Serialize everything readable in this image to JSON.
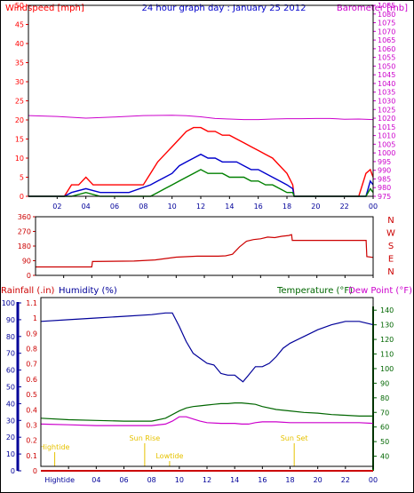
{
  "colors": {
    "wind": "#ff0000",
    "wind_avg": "#0000cc",
    "wind_low": "#008000",
    "barometer": "#cc00cc",
    "direction": "#cc0000",
    "rain": "#cc0000",
    "humidity": "#000099",
    "temperature": "#006600",
    "dewpoint": "#cc00cc",
    "events": "#e6c200",
    "grid": "#000000"
  },
  "chart_data": [
    {
      "type": "line",
      "title": "24 hour graph day : January 25 2012",
      "ylabel_left": "Windspeed [mph]",
      "ylabel_right": "Barometer [mb]",
      "x_ticks": [
        "02",
        "04",
        "06",
        "08",
        "10",
        "12",
        "14",
        "16",
        "18",
        "20",
        "22",
        "00"
      ],
      "y_left": {
        "min": 0,
        "max": 50,
        "ticks": [
          "0",
          "5",
          "10",
          "15",
          "20",
          "25",
          "30",
          "35",
          "40",
          "45",
          "50"
        ]
      },
      "y_right": {
        "min": 975,
        "max": 1085,
        "ticks": [
          "975",
          "980",
          "985",
          "990",
          "995",
          "1000",
          "1005",
          "1010",
          "1015",
          "1020",
          "1025",
          "1030",
          "1035",
          "1040",
          "1045",
          "1050",
          "1055",
          "1060",
          "1065",
          "1070",
          "1075",
          "1080",
          "1085"
        ]
      },
      "series": [
        {
          "key": "gust",
          "hours": [
            0,
            2.5,
            3.0,
            3.5,
            4.0,
            4.5,
            5.0,
            6.0,
            7.0,
            8.0,
            8.5,
            9.0,
            9.5,
            10.0,
            10.5,
            11.0,
            11.5,
            12.0,
            12.5,
            13.0,
            13.5,
            14.0,
            14.5,
            15.0,
            15.5,
            16.0,
            16.5,
            17.0,
            17.5,
            18.0,
            18.4,
            18.5,
            19.0,
            20.0,
            22.0,
            23.0,
            23.5,
            23.8,
            24.0
          ],
          "values": [
            0,
            0,
            3,
            3,
            5,
            3,
            3,
            3,
            3,
            3,
            6,
            9,
            11,
            13,
            15,
            17,
            18,
            18,
            17,
            17,
            16,
            16,
            15,
            14,
            13,
            12,
            11,
            10,
            8,
            6,
            3,
            0,
            0,
            0,
            0,
            0,
            6,
            7,
            5
          ]
        },
        {
          "key": "average",
          "hours": [
            0,
            2.5,
            3.0,
            4.0,
            5.0,
            7.0,
            8.5,
            9.0,
            9.5,
            10.0,
            10.5,
            11.0,
            11.5,
            12.0,
            12.5,
            13.0,
            13.5,
            14.0,
            14.5,
            15.0,
            15.5,
            16.0,
            16.5,
            17.0,
            17.5,
            18.0,
            18.4,
            18.5,
            23.5,
            23.8,
            24.0
          ],
          "values": [
            0,
            0,
            1,
            2,
            1,
            1,
            3,
            4,
            5,
            6,
            8,
            9,
            10,
            11,
            10,
            10,
            9,
            9,
            9,
            8,
            7,
            7,
            6,
            5,
            4,
            3,
            2,
            0,
            0,
            4,
            3
          ]
        },
        {
          "key": "low",
          "hours": [
            0,
            2.5,
            3.0,
            4.0,
            5.0,
            8.5,
            9.0,
            9.5,
            10.0,
            10.5,
            11.0,
            11.5,
            12.0,
            12.5,
            13.0,
            13.5,
            14.0,
            14.5,
            15.0,
            15.5,
            16.0,
            16.5,
            17.0,
            17.5,
            18.0,
            18.4,
            18.5,
            23.5,
            23.8,
            24.0
          ],
          "values": [
            0,
            0,
            0,
            1,
            0,
            0,
            1,
            2,
            3,
            4,
            5,
            6,
            7,
            6,
            6,
            6,
            5,
            5,
            5,
            4,
            4,
            3,
            3,
            2,
            1,
            1,
            0,
            0,
            2,
            1
          ]
        },
        {
          "key": "barometer",
          "axis": "right",
          "hours": [
            0,
            2,
            4,
            6,
            8,
            10,
            11,
            12,
            13,
            14,
            15,
            16,
            17,
            18,
            19,
            20,
            21,
            22,
            23,
            24
          ],
          "values": [
            1021.5,
            1021,
            1020,
            1020.7,
            1021.5,
            1021.7,
            1021.4,
            1020.8,
            1019.8,
            1019.5,
            1019.2,
            1019.2,
            1019.5,
            1019.7,
            1019.7,
            1019.8,
            1019.8,
            1019.4,
            1019.5,
            1019.2
          ]
        }
      ]
    },
    {
      "type": "line",
      "ylabel_right_letters": [
        "N",
        "W",
        "S",
        "E",
        "N"
      ],
      "x_ticks": [
        "02",
        "04",
        "06",
        "08",
        "10",
        "12",
        "14",
        "16",
        "18",
        "20",
        "22",
        "00"
      ],
      "y": {
        "min": 0,
        "max": 360,
        "ticks": [
          "0",
          "90",
          "180",
          "270",
          "360"
        ]
      },
      "series": [
        {
          "key": "direction",
          "hours": [
            0,
            4.0,
            4.05,
            7.0,
            8.5,
            10.0,
            11.5,
            12.5,
            13.0,
            13.5,
            14.0,
            14.5,
            15.0,
            15.5,
            16.0,
            16.5,
            17.0,
            17.5,
            18.0,
            18.2,
            18.25,
            23.5,
            23.55,
            24.0
          ],
          "values": [
            52,
            52,
            85,
            88,
            95,
            112,
            118,
            118,
            118,
            120,
            130,
            175,
            210,
            220,
            225,
            235,
            232,
            240,
            245,
            250,
            215,
            215,
            115,
            110
          ]
        }
      ]
    },
    {
      "type": "line",
      "ylabel_left_1": "Rainfall (.in)",
      "ylabel_left_2": "Humidity (%)",
      "ylabel_right_1": "Temperature (°F)",
      "ylabel_right_2": "Dew Point (°F)",
      "x_ticks": [
        "Hightide",
        "04",
        "06",
        "08",
        "10",
        "12",
        "14",
        "16",
        "18",
        "20",
        "22",
        "00"
      ],
      "y_humidity": {
        "min": 0,
        "max": 100,
        "ticks": [
          "0",
          "10",
          "20",
          "30",
          "40",
          "50",
          "60",
          "70",
          "80",
          "90",
          "100"
        ]
      },
      "y_rain": {
        "min": 0,
        "max": 1.1,
        "ticks": [
          "0",
          "0.1",
          "0.2",
          "0.3",
          "0.4",
          "0.5",
          "0.6",
          "0.7",
          "0.8",
          "0.9",
          "1",
          "1.1"
        ]
      },
      "y_temp": {
        "min": 30,
        "max": 145,
        "ticks": [
          "40",
          "50",
          "60",
          "70",
          "80",
          "90",
          "100",
          "110",
          "120",
          "130",
          "140"
        ]
      },
      "events": [
        {
          "label": "Hightide",
          "hour": 1.0,
          "level": 1
        },
        {
          "label": "Sun Rise",
          "hour": 7.5,
          "level": 2
        },
        {
          "label": "Lowtide",
          "hour": 9.3,
          "level": 0
        },
        {
          "label": "Sun Set",
          "hour": 18.3,
          "level": 2
        }
      ],
      "series": [
        {
          "key": "humidity",
          "axis": "humidity",
          "hours": [
            0,
            2,
            4,
            6,
            8,
            9,
            9.5,
            10,
            10.5,
            11,
            11.5,
            12,
            12.5,
            13,
            13.5,
            14,
            14.3,
            14.6,
            15,
            15.5,
            16,
            16.5,
            17,
            17.5,
            18,
            19,
            20,
            21,
            22,
            23,
            23.5,
            24
          ],
          "values": [
            89,
            90,
            91,
            92,
            93,
            94,
            94,
            86,
            77,
            70,
            67,
            64,
            63,
            58,
            57,
            57,
            55,
            53,
            57,
            62,
            62,
            64,
            68,
            73,
            76,
            80,
            84,
            87,
            89,
            89,
            88,
            87
          ]
        },
        {
          "key": "temperature",
          "axis": "temp",
          "hours": [
            0,
            2,
            4,
            6,
            8,
            9,
            10,
            10.5,
            11,
            11.5,
            12,
            12.5,
            13,
            13.5,
            14,
            14.5,
            15,
            15.5,
            16,
            17,
            18,
            19,
            20,
            21,
            22,
            23,
            24
          ],
          "values": [
            66,
            65,
            64.5,
            64,
            64,
            66,
            71,
            73,
            74,
            74.5,
            75,
            75.5,
            76,
            76,
            76.5,
            76.5,
            76,
            75.5,
            74,
            72,
            71,
            70,
            69.5,
            68.5,
            68,
            67.5,
            67.5
          ]
        },
        {
          "key": "dewpoint",
          "axis": "temp",
          "hours": [
            0,
            2,
            4,
            6,
            8,
            9,
            9.5,
            10,
            10.5,
            11,
            11.5,
            12,
            13,
            14,
            14.5,
            15,
            15.5,
            16,
            17,
            18,
            19,
            20,
            21,
            22,
            23,
            24
          ],
          "values": [
            62,
            61.5,
            61,
            61,
            61,
            62,
            64,
            67,
            67,
            65.5,
            64,
            63,
            62.5,
            62.5,
            62,
            62,
            63,
            63.5,
            63.5,
            63,
            63,
            63,
            63,
            63,
            63,
            62.5
          ]
        },
        {
          "key": "rain",
          "axis": "rain",
          "hours": [
            0,
            24
          ],
          "values": [
            0,
            0
          ]
        }
      ]
    }
  ]
}
